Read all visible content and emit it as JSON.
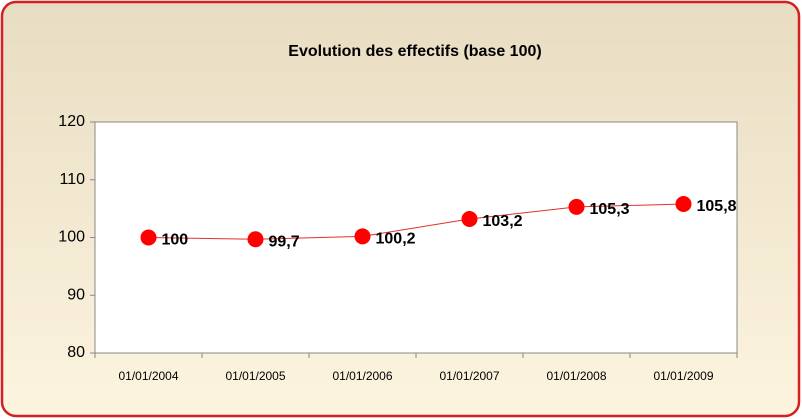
{
  "chart_data": {
    "type": "line",
    "title": "Evolution des effectifs (base 100)",
    "categories": [
      "01/01/2004",
      "01/01/2005",
      "01/01/2006",
      "01/01/2007",
      "01/01/2008",
      "01/01/2009"
    ],
    "series": [
      {
        "color": "#ff0000",
        "values": [
          100,
          99.7,
          100.2,
          103.2,
          105.3,
          105.8
        ],
        "value_labels": [
          "100",
          "99,7",
          "100,2",
          "103,2",
          "105,3",
          "105,8"
        ]
      }
    ],
    "ylim": [
      80,
      120
    ],
    "yticks": [
      80,
      90,
      100,
      110,
      120
    ],
    "grid": false
  }
}
